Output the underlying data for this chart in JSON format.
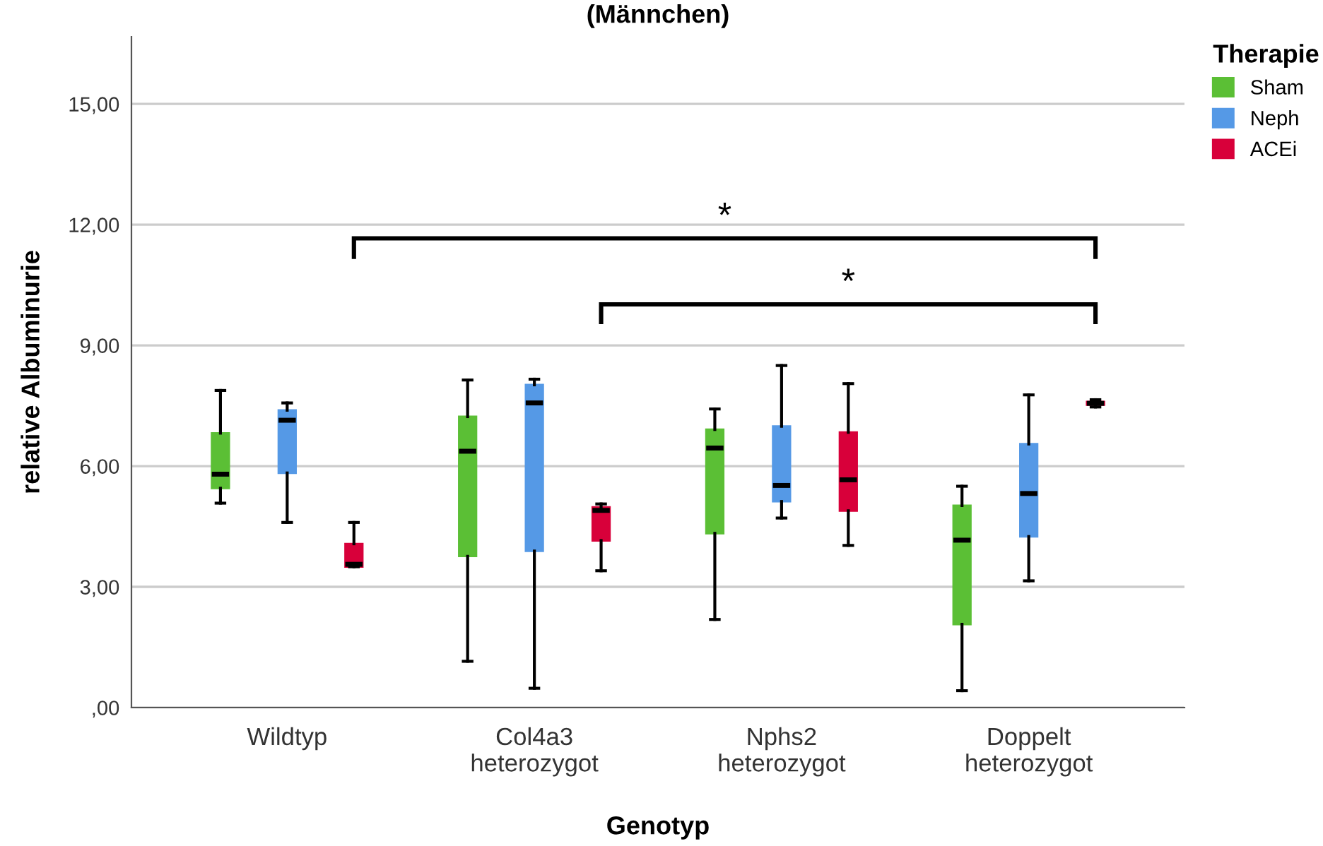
{
  "chart_data": {
    "type": "box",
    "title": "(Männchen)",
    "xlabel": "Genotyp",
    "ylabel": "relative Albuminurie",
    "legend_title": "Therapie",
    "legend": "top right",
    "grid": "y",
    "categories": [
      "Wildtyp",
      "Col4a3\nheterozygot",
      "Nphs2\nheterozygot",
      "Doppelt\nheterozygot"
    ],
    "ylim": [
      0,
      16.67
    ],
    "yticks": [
      {
        "value": 0,
        "label": ",00"
      },
      {
        "value": 3,
        "label": "3,00"
      },
      {
        "value": 6,
        "label": "6,00"
      },
      {
        "value": 9,
        "label": "9,00"
      },
      {
        "value": 12,
        "label": "12,00"
      },
      {
        "value": 15,
        "label": "15,00"
      }
    ],
    "series": [
      {
        "name": "Sham",
        "color": "#5bbf35",
        "boxes": [
          {
            "low": 5.08,
            "q1": 5.45,
            "median": 5.8,
            "q3": 6.82,
            "high": 7.88
          },
          {
            "low": 1.15,
            "q1": 3.76,
            "median": 6.37,
            "q3": 7.23,
            "high": 8.14
          },
          {
            "low": 2.19,
            "q1": 4.33,
            "median": 6.45,
            "q3": 6.91,
            "high": 7.42
          },
          {
            "low": 0.42,
            "q1": 2.07,
            "median": 4.16,
            "q3": 5.02,
            "high": 5.5
          }
        ]
      },
      {
        "name": "Neph",
        "color": "#5599e6",
        "boxes": [
          {
            "low": 4.6,
            "q1": 5.83,
            "median": 7.14,
            "q3": 7.39,
            "high": 7.57
          },
          {
            "low": 0.48,
            "q1": 3.89,
            "median": 7.57,
            "q3": 8.02,
            "high": 8.16
          },
          {
            "low": 4.71,
            "q1": 5.12,
            "median": 5.52,
            "q3": 6.99,
            "high": 8.5
          },
          {
            "low": 3.15,
            "q1": 4.25,
            "median": 5.32,
            "q3": 6.55,
            "high": 7.77
          }
        ]
      },
      {
        "name": "ACEi",
        "color": "#d8003a",
        "boxes": [
          {
            "low": 3.5,
            "q1": 3.5,
            "median": 3.56,
            "q3": 4.07,
            "high": 4.6
          },
          {
            "low": 3.4,
            "q1": 4.15,
            "median": 4.9,
            "q3": 4.98,
            "high": 5.06
          },
          {
            "low": 4.03,
            "q1": 4.89,
            "median": 5.66,
            "q3": 6.84,
            "high": 8.05
          },
          {
            "low": 7.47,
            "q1": 7.52,
            "median": 7.56,
            "q3": 7.6,
            "high": 7.65
          }
        ]
      }
    ],
    "annotations": [
      "*",
      "*"
    ]
  }
}
